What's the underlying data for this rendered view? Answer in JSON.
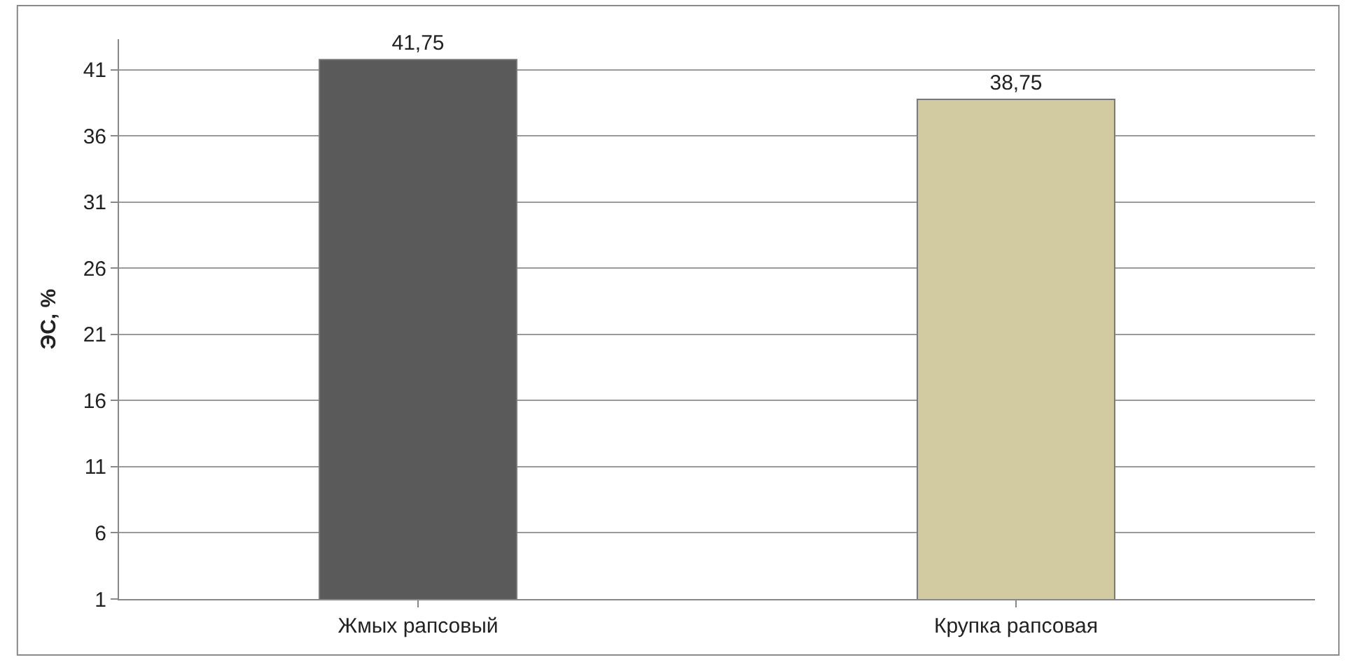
{
  "chart_data": {
    "type": "bar",
    "ylabel": "ЭС, %",
    "categories": [
      "Жмых рапсовый",
      "Крупка рапсовая"
    ],
    "values": [
      41.75,
      38.75
    ],
    "colors": [
      "#5a5a5a",
      "#d3cba0"
    ],
    "value_labels": [
      "41,75",
      "38,75"
    ],
    "ylim": [
      1,
      43.3
    ],
    "yticks": [
      1,
      6,
      11,
      16,
      21,
      26,
      31,
      36,
      41
    ],
    "grid": "y"
  }
}
